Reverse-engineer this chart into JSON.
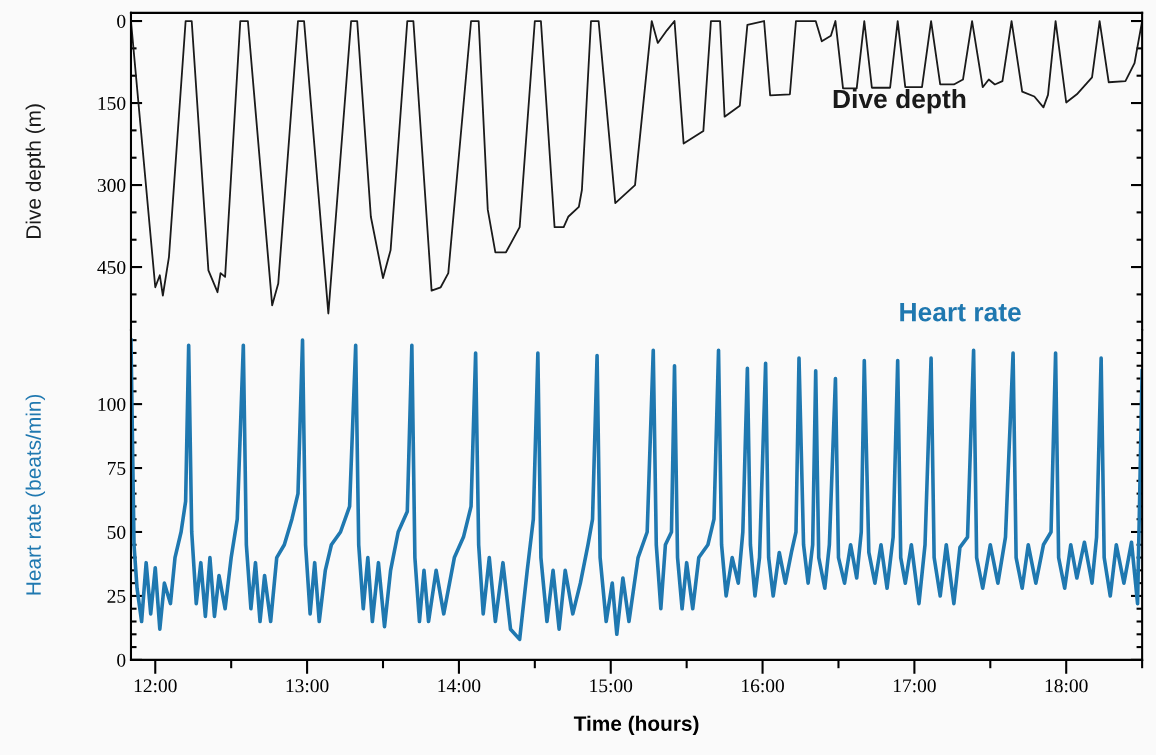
{
  "chart_data": [
    {
      "type": "line",
      "ylabel": "Dive depth (m)",
      "xlim": [
        11.84,
        18.5
      ],
      "ylim": [
        565,
        -15
      ],
      "yticks": [
        0,
        150,
        300,
        450
      ],
      "tick_labels": "y",
      "grid": false,
      "legend": false,
      "marker": "none",
      "line_style": "solid",
      "series": [
        {
          "name": "Dive depth",
          "color": "#1a1a1a",
          "x": [
            11.84,
            12.0,
            12.03,
            12.05,
            12.09,
            12.2,
            12.24,
            12.35,
            12.41,
            12.43,
            12.46,
            12.56,
            12.61,
            12.77,
            12.81,
            12.94,
            12.98,
            13.14,
            13.29,
            13.33,
            13.42,
            13.5,
            13.55,
            13.66,
            13.7,
            13.82,
            13.88,
            13.93,
            14.08,
            14.13,
            14.19,
            14.24,
            14.31,
            14.4,
            14.5,
            14.54,
            14.63,
            14.69,
            14.72,
            14.79,
            14.81,
            14.87,
            14.92,
            15.03,
            15.16,
            15.27,
            15.31,
            15.37,
            15.42,
            15.48,
            15.61,
            15.66,
            15.72,
            15.75,
            15.85,
            15.9,
            16.01,
            16.05,
            16.18,
            16.22,
            16.35,
            16.39,
            16.45,
            16.48,
            16.53,
            16.62,
            16.67,
            16.72,
            16.84,
            16.89,
            16.94,
            17.05,
            17.11,
            17.17,
            17.26,
            17.32,
            17.38,
            17.45,
            17.49,
            17.53,
            17.58,
            17.64,
            17.71,
            17.79,
            17.85,
            17.88,
            17.93,
            18.0,
            18.07,
            18.17,
            18.22,
            18.28,
            18.39,
            18.45,
            18.5
          ],
          "values": [
            0,
            487,
            465,
            502,
            432,
            0,
            0,
            456,
            496,
            461,
            468,
            0,
            0,
            520,
            480,
            0,
            0,
            535,
            0,
            0,
            358,
            470,
            419,
            0,
            0,
            493,
            487,
            461,
            0,
            0,
            345,
            423,
            423,
            377,
            0,
            0,
            377,
            377,
            358,
            340,
            309,
            0,
            0,
            333,
            300,
            0,
            40,
            17,
            0,
            224,
            201,
            0,
            0,
            175,
            155,
            7,
            0,
            136,
            134,
            0,
            0,
            37,
            27,
            0,
            123,
            123,
            0,
            122,
            122,
            0,
            121,
            121,
            0,
            116,
            116,
            107,
            0,
            121,
            107,
            116,
            110,
            0,
            129,
            138,
            158,
            135,
            0,
            149,
            134,
            103,
            0,
            112,
            110,
            77,
            0
          ]
        }
      ]
    },
    {
      "type": "line",
      "xlabel": "Time (hours)",
      "ylabel": "Heart rate (beats/min)",
      "xlim": [
        11.84,
        18.5
      ],
      "xticks": [
        {
          "value": 12,
          "label": "12:00"
        },
        {
          "value": 13,
          "label": "13:00"
        },
        {
          "value": 14,
          "label": "14:00"
        },
        {
          "value": 15,
          "label": "15:00"
        },
        {
          "value": 16,
          "label": "16:00"
        },
        {
          "value": 17,
          "label": "17:00"
        },
        {
          "value": 18,
          "label": "18:00"
        }
      ],
      "ylim": [
        0,
        129
      ],
      "yticks": [
        0,
        25,
        50,
        75,
        100
      ],
      "grid": false,
      "legend": false,
      "marker": "none",
      "line_style": "solid",
      "series": [
        {
          "name": "Heart rate",
          "color": "#1f78b0",
          "x": [
            11.84,
            11.86,
            11.88,
            11.91,
            11.94,
            11.97,
            12.0,
            12.03,
            12.06,
            12.1,
            12.13,
            12.17,
            12.2,
            12.22,
            12.24,
            12.27,
            12.3,
            12.33,
            12.36,
            12.39,
            12.42,
            12.46,
            12.5,
            12.54,
            12.58,
            12.6,
            12.63,
            12.66,
            12.69,
            12.72,
            12.76,
            12.8,
            12.85,
            12.9,
            12.94,
            12.97,
            12.99,
            13.02,
            13.05,
            13.08,
            13.12,
            13.16,
            13.22,
            13.28,
            13.32,
            13.34,
            13.37,
            13.4,
            13.43,
            13.47,
            13.51,
            13.55,
            13.6,
            13.66,
            13.69,
            13.71,
            13.74,
            13.77,
            13.8,
            13.85,
            13.9,
            13.97,
            14.03,
            14.08,
            14.11,
            14.13,
            14.16,
            14.2,
            14.24,
            14.29,
            14.34,
            14.4,
            14.45,
            14.49,
            14.52,
            14.54,
            14.58,
            14.62,
            14.66,
            14.7,
            14.75,
            14.8,
            14.85,
            14.88,
            14.91,
            14.93,
            14.97,
            15.01,
            15.04,
            15.08,
            15.12,
            15.18,
            15.24,
            15.28,
            15.3,
            15.33,
            15.36,
            15.4,
            15.42,
            15.44,
            15.47,
            15.5,
            15.54,
            15.58,
            15.64,
            15.68,
            15.71,
            15.73,
            15.76,
            15.8,
            15.84,
            15.87,
            15.9,
            15.92,
            15.95,
            15.98,
            16.02,
            16.04,
            16.07,
            16.11,
            16.15,
            16.19,
            16.22,
            16.24,
            16.27,
            16.3,
            16.33,
            16.35,
            16.37,
            16.41,
            16.44,
            16.48,
            16.5,
            16.54,
            16.58,
            16.62,
            16.65,
            16.67,
            16.7,
            16.74,
            16.78,
            16.82,
            16.86,
            16.89,
            16.91,
            16.94,
            16.98,
            17.03,
            17.07,
            17.11,
            17.13,
            17.17,
            17.21,
            17.26,
            17.3,
            17.35,
            17.39,
            17.41,
            17.45,
            17.5,
            17.55,
            17.6,
            17.65,
            17.67,
            17.71,
            17.75,
            17.8,
            17.85,
            17.9,
            17.93,
            17.95,
            17.99,
            18.03,
            18.07,
            18.12,
            18.17,
            18.2,
            18.23,
            18.25,
            18.29,
            18.33,
            18.38,
            18.43,
            18.47,
            18.5
          ],
          "values": [
            125,
            45,
            28,
            15,
            38,
            18,
            36,
            12,
            30,
            22,
            40,
            50,
            62,
            123,
            50,
            22,
            38,
            17,
            40,
            17,
            33,
            20,
            40,
            55,
            123,
            45,
            20,
            38,
            15,
            33,
            15,
            40,
            45,
            55,
            65,
            125,
            45,
            18,
            38,
            15,
            35,
            45,
            50,
            60,
            123,
            45,
            20,
            40,
            15,
            38,
            13,
            35,
            50,
            58,
            123,
            40,
            15,
            35,
            15,
            35,
            18,
            40,
            48,
            60,
            120,
            45,
            18,
            40,
            15,
            38,
            12,
            8,
            35,
            55,
            120,
            40,
            15,
            35,
            12,
            35,
            18,
            30,
            45,
            55,
            119,
            40,
            15,
            30,
            10,
            32,
            15,
            40,
            50,
            121,
            45,
            20,
            45,
            50,
            115,
            40,
            20,
            38,
            20,
            40,
            45,
            55,
            121,
            45,
            25,
            40,
            30,
            50,
            114,
            45,
            25,
            40,
            116,
            40,
            25,
            42,
            30,
            42,
            50,
            118,
            45,
            30,
            45,
            113,
            40,
            28,
            45,
            110,
            40,
            30,
            45,
            32,
            50,
            117,
            42,
            30,
            45,
            28,
            48,
            117,
            40,
            30,
            45,
            22,
            45,
            118,
            40,
            25,
            45,
            22,
            44,
            48,
            121,
            40,
            28,
            45,
            30,
            48,
            120,
            40,
            28,
            45,
            30,
            45,
            50,
            120,
            40,
            28,
            45,
            32,
            46,
            30,
            48,
            118,
            40,
            25,
            45,
            30,
            46,
            22,
            113
          ]
        }
      ]
    }
  ]
}
